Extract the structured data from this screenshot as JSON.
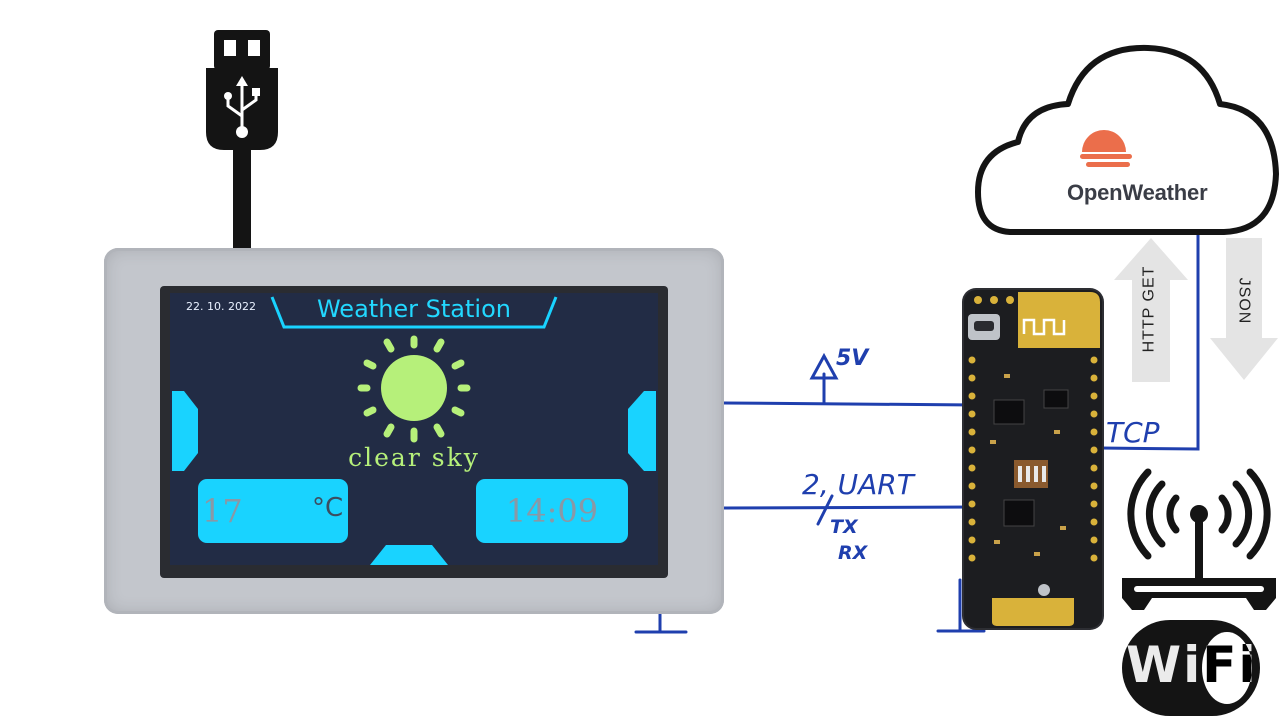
{
  "display": {
    "date": "22. 10. 2022",
    "title": "Weather Station",
    "condition": "clear sky",
    "temperature": "17",
    "temperature_unit": "°C",
    "time": "14:09"
  },
  "labels": {
    "power": "5V",
    "uart": "2, UART",
    "tx": "TX",
    "rx": "RX",
    "tcp": "TCP",
    "http_get": "HTTP GET",
    "json": "JSON"
  },
  "cloud": {
    "brand": "OpenWeather"
  },
  "wifi": {
    "logo_text": "WiFi"
  },
  "colors": {
    "wire": "#1f3fae",
    "accent_cyan": "#19d3ff",
    "sun": "#b6f07a",
    "screen_bg": "#222c45",
    "openweather_orange": "#eb6e4b"
  },
  "icons": [
    "usb-plug-icon",
    "sun-icon",
    "cloud-icon",
    "openweather-logo-icon",
    "wifi-router-icon",
    "wifi-logo-icon",
    "arrow-up-icon",
    "arrow-down-icon"
  ]
}
